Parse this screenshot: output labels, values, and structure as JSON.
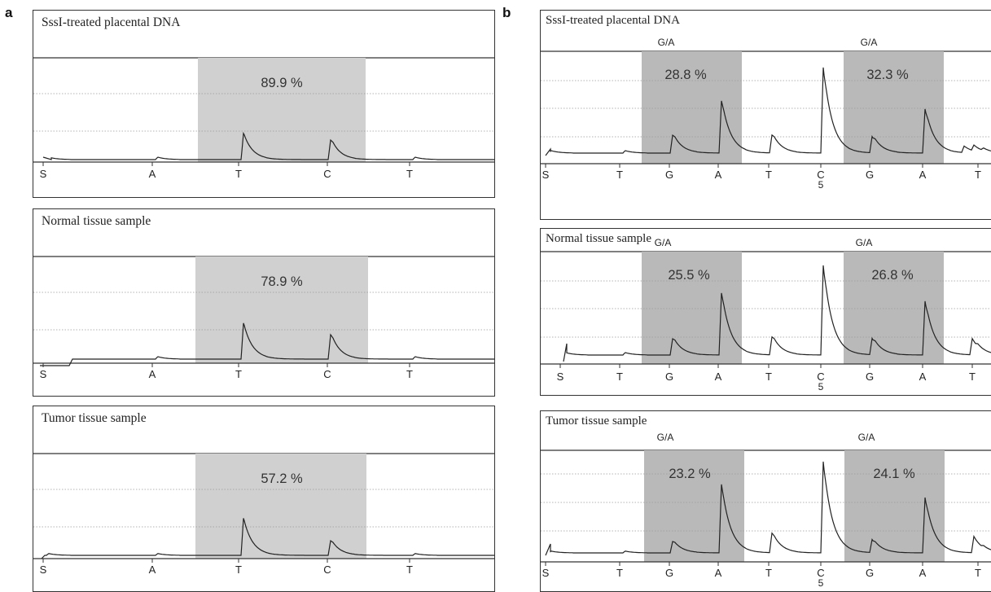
{
  "panel_labels": {
    "a": "a",
    "b": "b"
  },
  "colors": {
    "shade_a": "#d0d0d0",
    "shade_b": "#b9b9b9",
    "trace": "#222222",
    "grid": "#9a9a9a"
  },
  "chart_data": [
    {
      "panel": "a",
      "type": "line",
      "title": "SssI-treated placental DNA",
      "tick_labels": [
        "S",
        "A",
        "T",
        "C",
        "T"
      ],
      "tick_sublabels": [
        "",
        "",
        "",
        "",
        ""
      ],
      "site_labels": [],
      "percentages": [
        "89.9 %"
      ],
      "grid": true
    },
    {
      "panel": "a",
      "type": "line",
      "title": "Normal tissue sample",
      "tick_labels": [
        "S",
        "A",
        "T",
        "C",
        "T"
      ],
      "tick_sublabels": [
        "",
        "",
        "",
        "",
        ""
      ],
      "site_labels": [],
      "percentages": [
        "78.9 %"
      ],
      "grid": true
    },
    {
      "panel": "a",
      "type": "line",
      "title": "Tumor tissue sample",
      "tick_labels": [
        "S",
        "A",
        "T",
        "C",
        "T"
      ],
      "tick_sublabels": [
        "",
        "",
        "",
        "",
        ""
      ],
      "site_labels": [],
      "percentages": [
        "57.2 %"
      ],
      "grid": true
    },
    {
      "panel": "b",
      "type": "line",
      "title": "SssI-treated placental DNA",
      "tick_labels": [
        "S",
        "T",
        "G",
        "A",
        "T",
        "C",
        "G",
        "A",
        "T"
      ],
      "tick_sublabels": [
        "",
        "",
        "",
        "",
        "",
        "5",
        "",
        "",
        ""
      ],
      "site_labels": [
        "G/A",
        "G/A"
      ],
      "percentages": [
        "28.8 %",
        "32.3 %"
      ],
      "grid": true
    },
    {
      "panel": "b",
      "type": "line",
      "title": "Normal tissue sample",
      "tick_labels": [
        "S",
        "T",
        "G",
        "A",
        "T",
        "C",
        "G",
        "A",
        "T"
      ],
      "tick_sublabels": [
        "",
        "",
        "",
        "",
        "",
        "5",
        "",
        "",
        ""
      ],
      "site_labels": [
        "G/A",
        "G/A"
      ],
      "percentages": [
        "25.5 %",
        "26.8 %"
      ],
      "grid": true
    },
    {
      "panel": "b",
      "type": "line",
      "title": "Tumor tissue sample",
      "tick_labels": [
        "S",
        "T",
        "G",
        "A",
        "T",
        "C",
        "G",
        "A",
        "T"
      ],
      "tick_sublabels": [
        "",
        "",
        "",
        "",
        "",
        "5",
        "",
        "",
        ""
      ],
      "site_labels": [
        "G/A",
        "G/A"
      ],
      "percentages": [
        "23.2 %",
        "24.1 %"
      ],
      "grid": true
    }
  ]
}
